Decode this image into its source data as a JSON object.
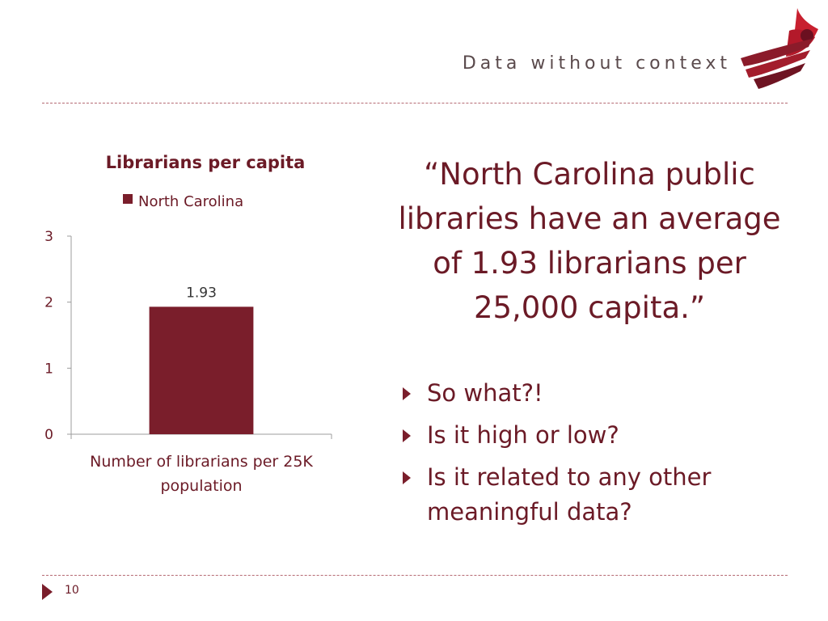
{
  "header": {
    "title": "Data without context"
  },
  "chart_data": {
    "type": "bar",
    "title": "Librarians per capita",
    "categories": [
      "Number of librarians per 25K population"
    ],
    "series": [
      {
        "name": "North Carolina",
        "values": [
          1.93
        ],
        "color": "#7a1e2b"
      }
    ],
    "data_labels": [
      "1.93"
    ],
    "y_ticks": [
      "0",
      "1",
      "2",
      "3"
    ],
    "ylim": [
      0,
      3
    ],
    "legend": "top",
    "grid": false
  },
  "quote": "“North Carolina public libraries have an average of 1.93 librarians per 25,000 capita.”",
  "bullets": [
    "So what?!",
    "Is it high or low?",
    "Is it related to any other meaningful data?"
  ],
  "footer": {
    "page_number": "10"
  },
  "colors": {
    "accent": "#7a1e2b",
    "text": "#6b1a26",
    "rule": "#b56a73"
  },
  "icons": {
    "logo": "cardinal-logo",
    "bullet": "triangle-right-icon"
  }
}
